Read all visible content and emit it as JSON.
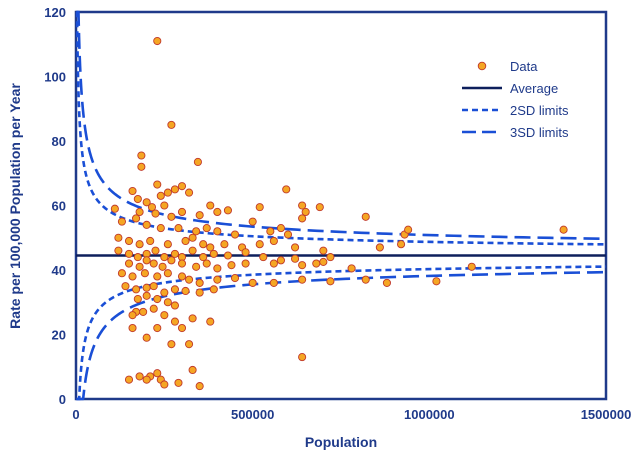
{
  "chart_data": {
    "type": "scatter",
    "xlabel": "Population",
    "ylabel": "Rate per 100,000 Population per Year",
    "xlim": [
      0,
      1500000
    ],
    "ylim": [
      0,
      120
    ],
    "x_ticks": [
      "0",
      "500000",
      "1000000",
      "1500000"
    ],
    "y_ticks": [
      "0",
      "20",
      "40",
      "60",
      "80",
      "100",
      "120"
    ],
    "legend_position": "top-right",
    "grid": false,
    "average": 44.5,
    "colors": {
      "axis": "#1f3a8a",
      "point_fill": "#f5a623",
      "point_stroke": "#c0392b",
      "line": "#1a4fd6",
      "average_line": "#0d1f5c"
    },
    "legend": [
      {
        "label": "Data",
        "style": "marker"
      },
      {
        "label": "Average",
        "style": "solid"
      },
      {
        "label": "2SD limits",
        "style": "short-dash"
      },
      {
        "label": "3SD limits",
        "style": "long-dash"
      }
    ],
    "points": [
      [
        230000,
        111
      ],
      [
        270000,
        85
      ],
      [
        345000,
        73.5
      ],
      [
        185000,
        75.5
      ],
      [
        185000,
        72
      ],
      [
        595000,
        65
      ],
      [
        160000,
        64.5
      ],
      [
        280000,
        65
      ],
      [
        260000,
        64
      ],
      [
        300000,
        66
      ],
      [
        320000,
        64
      ],
      [
        230000,
        66.5
      ],
      [
        240000,
        63
      ],
      [
        175000,
        62
      ],
      [
        200000,
        61
      ],
      [
        215000,
        59.5
      ],
      [
        250000,
        60
      ],
      [
        110000,
        59
      ],
      [
        180000,
        58
      ],
      [
        225000,
        57.5
      ],
      [
        270000,
        56.5
      ],
      [
        300000,
        58
      ],
      [
        350000,
        57
      ],
      [
        380000,
        60
      ],
      [
        400000,
        58
      ],
      [
        430000,
        58.5
      ],
      [
        520000,
        59.5
      ],
      [
        640000,
        60
      ],
      [
        650000,
        58
      ],
      [
        690000,
        59.5
      ],
      [
        820000,
        56.5
      ],
      [
        130000,
        55
      ],
      [
        170000,
        56
      ],
      [
        200000,
        54
      ],
      [
        240000,
        53
      ],
      [
        290000,
        53
      ],
      [
        340000,
        52
      ],
      [
        370000,
        53
      ],
      [
        400000,
        52
      ],
      [
        450000,
        51
      ],
      [
        500000,
        55
      ],
      [
        550000,
        52
      ],
      [
        580000,
        53
      ],
      [
        600000,
        51
      ],
      [
        640000,
        56
      ],
      [
        930000,
        51
      ],
      [
        940000,
        52.5
      ],
      [
        1380000,
        52.5
      ],
      [
        120000,
        50
      ],
      [
        150000,
        49
      ],
      [
        180000,
        48
      ],
      [
        210000,
        49
      ],
      [
        260000,
        48
      ],
      [
        310000,
        49
      ],
      [
        330000,
        50
      ],
      [
        360000,
        48
      ],
      [
        380000,
        47
      ],
      [
        420000,
        48
      ],
      [
        470000,
        47
      ],
      [
        520000,
        48
      ],
      [
        560000,
        49
      ],
      [
        620000,
        47
      ],
      [
        700000,
        46
      ],
      [
        860000,
        47
      ],
      [
        920000,
        48
      ],
      [
        120000,
        46
      ],
      [
        150000,
        45
      ],
      [
        175000,
        44
      ],
      [
        200000,
        45
      ],
      [
        225000,
        46
      ],
      [
        250000,
        44
      ],
      [
        280000,
        45
      ],
      [
        300000,
        44
      ],
      [
        330000,
        46
      ],
      [
        360000,
        44
      ],
      [
        390000,
        45
      ],
      [
        430000,
        44.5
      ],
      [
        480000,
        45.5
      ],
      [
        530000,
        44
      ],
      [
        580000,
        43
      ],
      [
        620000,
        43.5
      ],
      [
        680000,
        42
      ],
      [
        720000,
        44
      ],
      [
        150000,
        42
      ],
      [
        180000,
        41
      ],
      [
        200000,
        43
      ],
      [
        220000,
        42
      ],
      [
        245000,
        41
      ],
      [
        270000,
        43
      ],
      [
        300000,
        42
      ],
      [
        340000,
        41
      ],
      [
        370000,
        42
      ],
      [
        400000,
        40.5
      ],
      [
        440000,
        41.5
      ],
      [
        480000,
        42
      ],
      [
        560000,
        42
      ],
      [
        640000,
        41.5
      ],
      [
        700000,
        42.5
      ],
      [
        780000,
        40.5
      ],
      [
        130000,
        39
      ],
      [
        160000,
        38
      ],
      [
        195000,
        39
      ],
      [
        230000,
        38
      ],
      [
        260000,
        39
      ],
      [
        300000,
        38
      ],
      [
        320000,
        37
      ],
      [
        350000,
        36
      ],
      [
        400000,
        37
      ],
      [
        450000,
        37.5
      ],
      [
        500000,
        36
      ],
      [
        560000,
        36
      ],
      [
        640000,
        37
      ],
      [
        720000,
        36.5
      ],
      [
        820000,
        37
      ],
      [
        880000,
        36
      ],
      [
        1020000,
        36.5
      ],
      [
        1120000,
        41
      ],
      [
        140000,
        35
      ],
      [
        170000,
        34
      ],
      [
        200000,
        34.5
      ],
      [
        220000,
        35
      ],
      [
        250000,
        33
      ],
      [
        280000,
        34
      ],
      [
        310000,
        33.5
      ],
      [
        350000,
        33
      ],
      [
        390000,
        34
      ],
      [
        175000,
        31
      ],
      [
        200000,
        32
      ],
      [
        230000,
        31
      ],
      [
        260000,
        30
      ],
      [
        280000,
        29
      ],
      [
        220000,
        28
      ],
      [
        190000,
        27
      ],
      [
        170000,
        27
      ],
      [
        160000,
        26
      ],
      [
        250000,
        26
      ],
      [
        330000,
        25
      ],
      [
        280000,
        24
      ],
      [
        300000,
        22
      ],
      [
        230000,
        22
      ],
      [
        380000,
        24
      ],
      [
        160000,
        22
      ],
      [
        320000,
        17
      ],
      [
        270000,
        17
      ],
      [
        200000,
        19
      ],
      [
        640000,
        13
      ],
      [
        330000,
        9
      ],
      [
        230000,
        8
      ],
      [
        210000,
        7
      ],
      [
        240000,
        6
      ],
      [
        200000,
        6
      ],
      [
        250000,
        4.5
      ],
      [
        150000,
        6
      ],
      [
        180000,
        7
      ],
      [
        290000,
        5
      ],
      [
        350000,
        4
      ]
    ]
  }
}
